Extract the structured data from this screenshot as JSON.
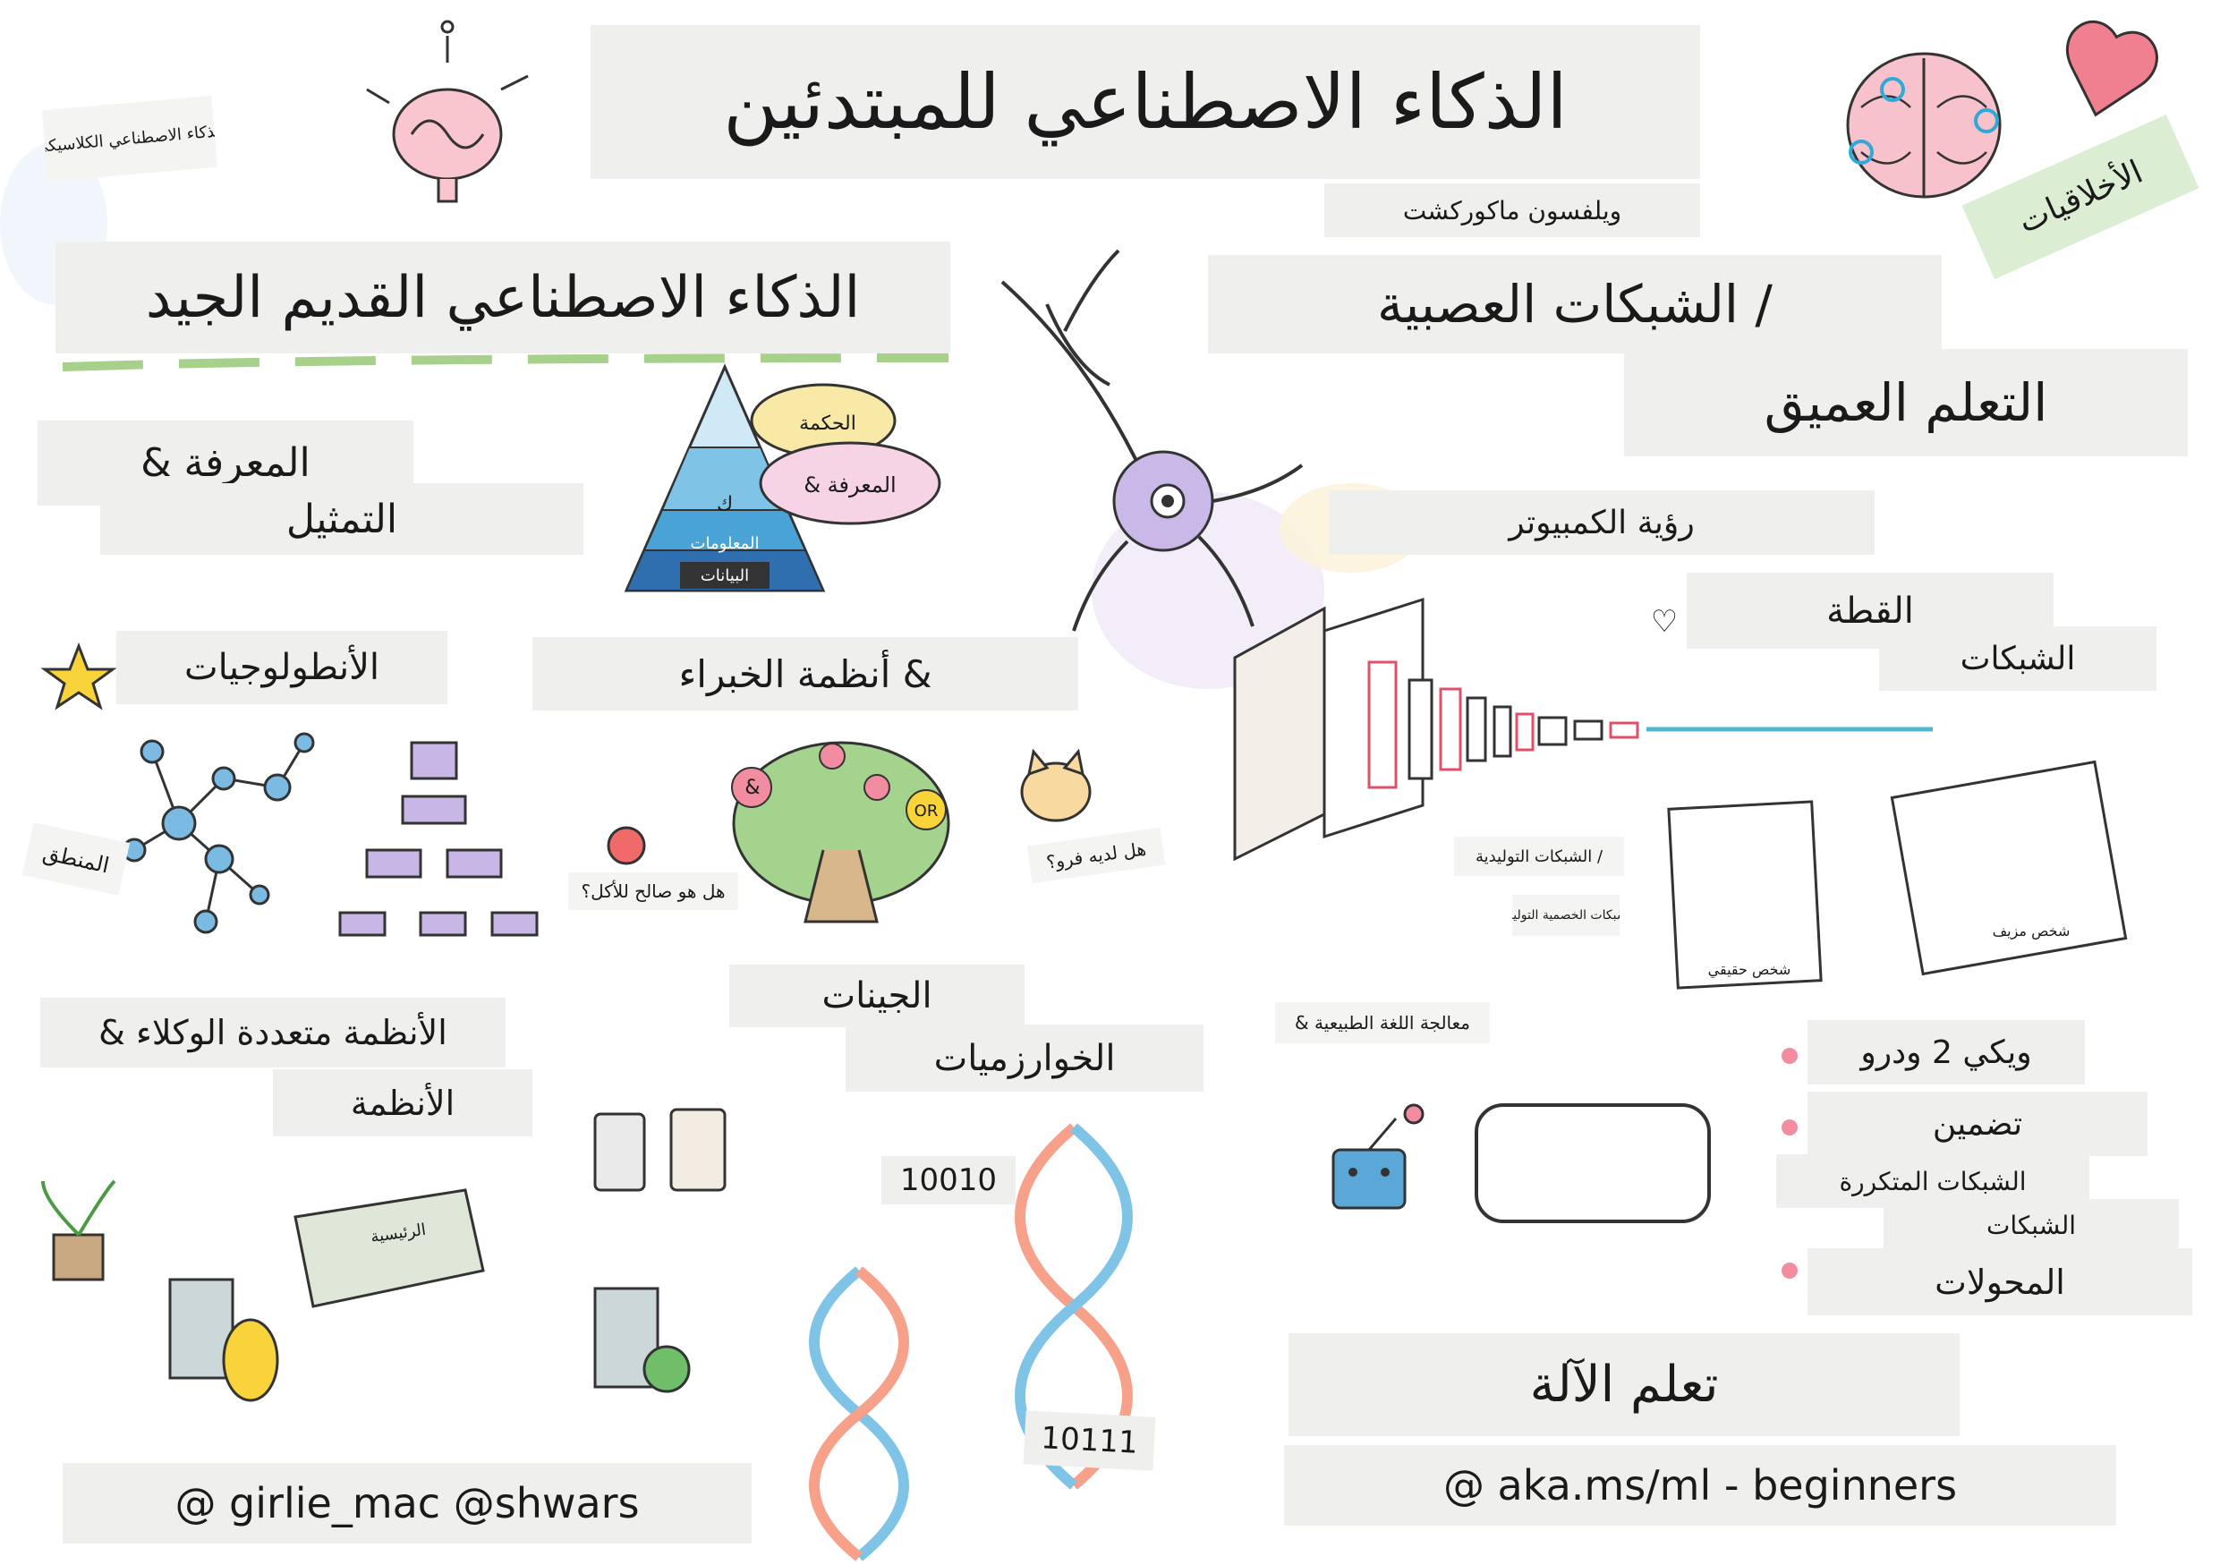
{
  "title": "الذكاء الاصطناعي للمبتدئين",
  "top_left_note": "الذكاء الاصطناعي الكلاسيكي",
  "subtitle_top": "ويلفسون ماكوركشت",
  "neuro_ethics": "الأخلاقيات",
  "section_classic": "الذكاء الاصطناعي القديم الجيد",
  "knowledge": "المعرفة &",
  "representation": "التمثيل",
  "pyramid_speech_1": "الحكمة",
  "pyramid_speech_2": "المعرفة &",
  "pyramid_levels": [
    "ك",
    "المعلومات",
    "البيانات"
  ],
  "ontologies": "الأنطولوجيات",
  "experts": "& أنظمة الخبراء",
  "logic": "المنطق",
  "apple_q": "هل هو صالح للأكل؟",
  "cat_q": "هل لديه فرو؟",
  "tree_or": "OR",
  "tree_and": "&",
  "section_nn": "/ الشبكات العصبية",
  "deep_learning": "التعلم العميق",
  "computer_vision": "رؤية الكمبيوتر",
  "heart_1": "♡",
  "cat_faces": "القطة",
  "networks": "الشبكات",
  "gen_nets": "/ الشبكات التوليدية",
  "adversarial": "الشبكات الخصمية التوليدية",
  "real_person": "شخص حقيقي",
  "fake_person": "شخص مزيف",
  "nlp": "معالجة اللغة الطبيعية &",
  "multi_agent": "الأنظمة متعددة الوكلاء &",
  "multi_agent_2": "الأنظمة",
  "genetic": "الجينات",
  "genetic_algos": "الخوارزميات",
  "bits_1": "10010",
  "bits_2": "10111",
  "server": "الرئيسية",
  "bullets": [
    "ويكي 2 ودرو",
    "تضمين",
    "الشبكات المتكررة",
    "الشبكات",
    "المحولات"
  ],
  "ml_next": "تعلم الآلة",
  "credit_left": "@ girlie_mac @shwars",
  "credit_right": "@ aka.ms/ml - beginners",
  "colors": {
    "label_bg": "#efefed",
    "green": "#a7d18a",
    "purple": "#b8a5d8",
    "blue": "#5aa7d8",
    "pink": "#e97a8f",
    "yellow": "#f6e06a",
    "teal": "#4fb7d1"
  },
  "icons": [
    "brain-icon",
    "neuron-icon",
    "heart-icon",
    "star-icon",
    "robot-icon",
    "dna-icon",
    "cat-icon",
    "apple-icon",
    "tree-icon",
    "server-icon",
    "plant-icon",
    "calculator-icon",
    "globe-icon",
    "database-icon"
  ]
}
